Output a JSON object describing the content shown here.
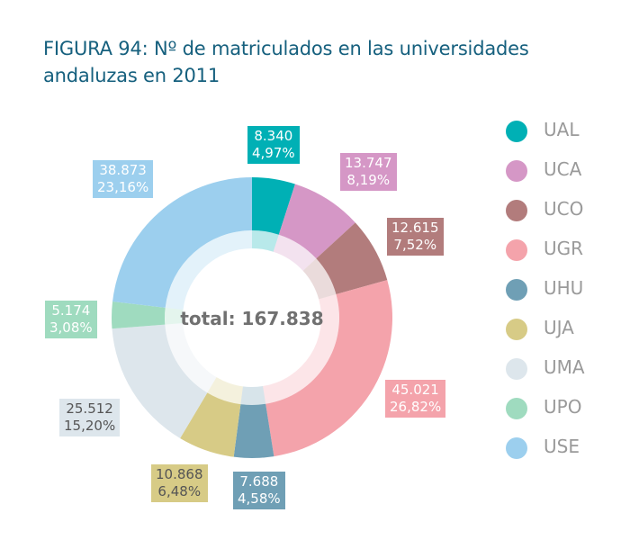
{
  "title_lines": [
    "FIGURA 94: Nº de matriculados en las universidades",
    "andaluzas en 2011"
  ],
  "center_label": "total: 167.838",
  "colors": {
    "UAL": "#00b0b5",
    "UCA": "#d597c6",
    "UCO": "#b27c7c",
    "UGR": "#f4a3ab",
    "UHU": "#6f9fb5",
    "UJA": "#d7cb86",
    "UMA": "#dde6ec",
    "UPO": "#9fdbbf",
    "USE": "#9ccfee"
  },
  "chart_data": {
    "type": "pie",
    "donut": true,
    "total": 167838,
    "slices": [
      {
        "label": "UAL",
        "value": 8340,
        "value_text": "8.340",
        "pct_text": "4,97%"
      },
      {
        "label": "UCA",
        "value": 13747,
        "value_text": "13.747",
        "pct_text": "8,19%"
      },
      {
        "label": "UCO",
        "value": 12615,
        "value_text": "12.615",
        "pct_text": "7,52%"
      },
      {
        "label": "UGR",
        "value": 45021,
        "value_text": "45.021",
        "pct_text": "26,82%"
      },
      {
        "label": "UHU",
        "value": 7688,
        "value_text": "7.688",
        "pct_text": "4,58%"
      },
      {
        "label": "UJA",
        "value": 10868,
        "value_text": "10.868",
        "pct_text": "6,48%"
      },
      {
        "label": "UMA",
        "value": 25512,
        "value_text": "25.512",
        "pct_text": "15,20%"
      },
      {
        "label": "UPO",
        "value": 5174,
        "value_text": "5.174",
        "pct_text": "3,08%"
      },
      {
        "label": "USE",
        "value": 38873,
        "value_text": "38.873",
        "pct_text": "23,16%"
      }
    ],
    "legend": [
      "UAL",
      "UCA",
      "UCO",
      "UGR",
      "UHU",
      "UJA",
      "UMA",
      "UPO",
      "USE"
    ],
    "legend_position": "right"
  }
}
